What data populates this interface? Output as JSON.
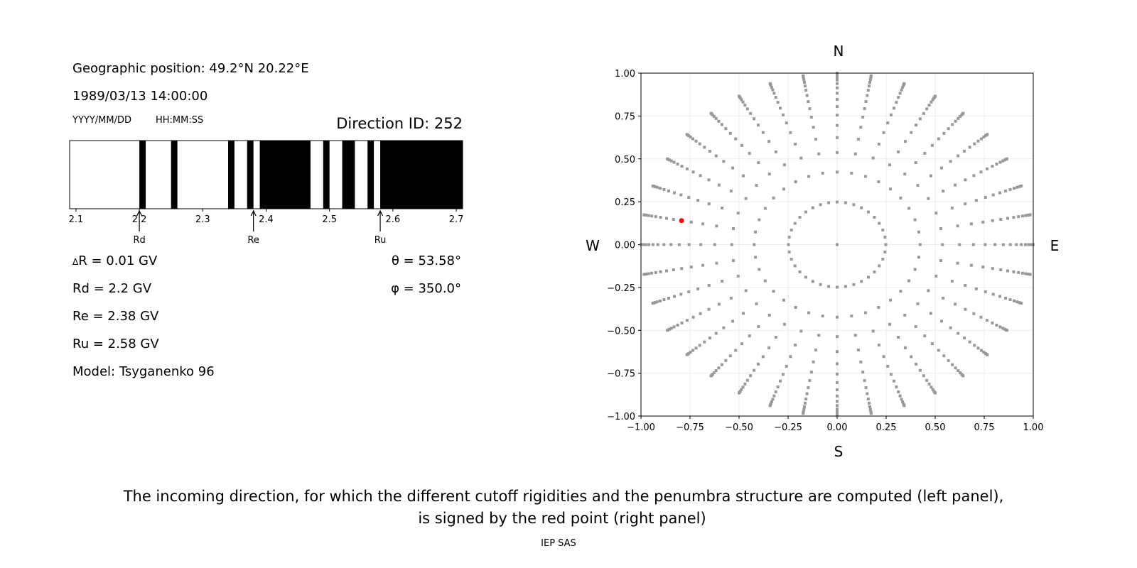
{
  "left_panel": {
    "geo_position": "Geographic position: 49.2°N 20.22°E",
    "datetime": "1989/03/13 14:00:00",
    "date_format": "YYYY/MM/DD",
    "time_format": "HH:MM:SS",
    "direction_id": "Direction ID: 252",
    "delta_symbol": "Δ",
    "delta_r": "R = 0.01 GV",
    "rd": "Rd = 2.2 GV",
    "re": "Re = 2.38 GV",
    "ru": "Ru = 2.58 GV",
    "model": "Model: Tsyganenko 96",
    "theta": "θ = 53.58°",
    "phi": "φ = 350.0°"
  },
  "caption": {
    "line1": "The incoming direction, for which the different cutoff rigidities and the penumbra structure are computed (left panel),",
    "line2": "is signed by the red point (right panel)",
    "credit": "IEP SAS"
  },
  "chart_data": [
    {
      "type": "bar",
      "xlim": [
        2.09,
        2.71
      ],
      "xticks": [
        "2.1",
        "2.2",
        "2.3",
        "2.4",
        "2.5",
        "2.6",
        "2.7"
      ],
      "forbidden_bands": [
        [
          2.2,
          2.21
        ],
        [
          2.25,
          2.26
        ],
        [
          2.34,
          2.35
        ],
        [
          2.37,
          2.38
        ],
        [
          2.39,
          2.47
        ],
        [
          2.49,
          2.5
        ],
        [
          2.52,
          2.54
        ],
        [
          2.56,
          2.57
        ],
        [
          2.58,
          2.71
        ]
      ],
      "colors": {
        "forbidden": "#000000",
        "allowed": "#ffffff"
      },
      "markers": [
        {
          "label": "Rd",
          "value": 2.2
        },
        {
          "label": "Re",
          "value": 2.38
        },
        {
          "label": "Ru",
          "value": 2.58
        }
      ]
    },
    {
      "type": "scatter",
      "xlim": [
        -1.0,
        1.0
      ],
      "ylim": [
        -1.0,
        1.0
      ],
      "xticks": [
        "−1.00",
        "−0.75",
        "−0.50",
        "−0.25",
        "0.00",
        "0.25",
        "0.50",
        "0.75",
        "1.00"
      ],
      "yticks": [
        "−1.00",
        "−0.75",
        "−0.50",
        "−0.25",
        "0.00",
        "0.25",
        "0.50",
        "0.75",
        "1.00"
      ],
      "grid": true,
      "directions": {
        "top": "N",
        "bottom": "S",
        "left": "W",
        "right": "E"
      },
      "grid_points": {
        "center": [
          0,
          0
        ],
        "azimuth_step_deg": 10,
        "radii": [
          0.248,
          0.423,
          0.537,
          0.624,
          0.695,
          0.755,
          0.805,
          0.847,
          0.883,
          0.914,
          0.939,
          0.96,
          0.976,
          0.988,
          0.996,
          0.9995
        ]
      },
      "selected_point": {
        "x": -0.793,
        "y": 0.14
      },
      "colors": {
        "grid_points": "#999999",
        "selected": "#ff0000"
      }
    }
  ]
}
